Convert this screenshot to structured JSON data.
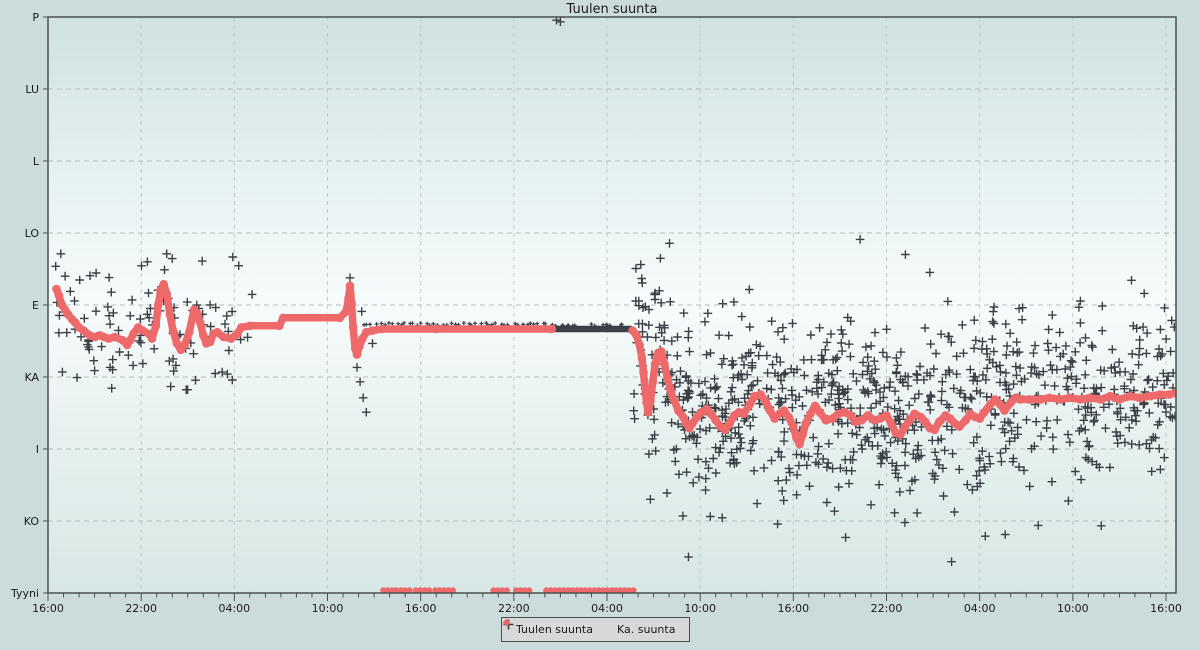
{
  "title": "Tuulen suunta",
  "legend": {
    "items": [
      {
        "label": "Tuulen suunta",
        "marker": "plus"
      },
      {
        "label": "Ka. suunta",
        "marker": "diamond"
      }
    ]
  },
  "colors": {
    "background": "#ccdcdc",
    "plot_top": "#cfe1e1",
    "plot_mid": "#f7fcfc",
    "plot_bottom": "#d7e7e5",
    "frame": "#4a4f52",
    "grid_h": "#b4bcbc",
    "grid_v": "#c2caca",
    "marker_plus": "#3a4045",
    "avg_line": "#ee6a6a",
    "legend_bg": "#d8d8d8",
    "text": "#1a1a1a"
  },
  "chart_data": {
    "type": "scatter",
    "title": "Tuulen suunta",
    "x_axis": {
      "tick_labels": [
        "16:00",
        "22:00",
        "04:00",
        "10:00",
        "16:00",
        "22:00",
        "04:00",
        "10:00",
        "16:00",
        "22:00",
        "04:00",
        "10:00",
        "16:00"
      ],
      "hours_per_major_tick": 6,
      "minor_tick_hours": 1,
      "hours_total": 72.6,
      "grid": true
    },
    "y_axis": {
      "tick_labels": [
        "P",
        "LU",
        "L",
        "LO",
        "E",
        "KA",
        "I",
        "KO",
        "Tyyni"
      ],
      "degrees": [
        360,
        315,
        270,
        225,
        180,
        135,
        90,
        45,
        0
      ],
      "grid": true
    },
    "legend_position": "bottom-center",
    "series": [
      {
        "name": "Ka. suunta",
        "type": "line",
        "points_h_deg": [
          [
            0.55,
            190
          ],
          [
            0.7,
            186
          ],
          [
            0.9,
            180
          ],
          [
            1.1,
            177
          ],
          [
            1.3,
            174
          ],
          [
            1.55,
            171
          ],
          [
            1.75,
            169
          ],
          [
            2.0,
            166
          ],
          [
            2.3,
            164
          ],
          [
            2.7,
            161
          ],
          [
            3.0,
            160
          ],
          [
            3.35,
            161
          ],
          [
            3.6,
            160
          ],
          [
            3.9,
            159
          ],
          [
            4.3,
            160
          ],
          [
            4.8,
            158
          ],
          [
            5.1,
            155
          ],
          [
            5.3,
            158
          ],
          [
            5.5,
            162
          ],
          [
            5.8,
            166
          ],
          [
            6.1,
            164
          ],
          [
            6.5,
            162
          ],
          [
            6.7,
            159
          ],
          [
            6.95,
            167
          ],
          [
            7.1,
            180
          ],
          [
            7.25,
            189
          ],
          [
            7.45,
            193
          ],
          [
            7.65,
            187
          ],
          [
            7.85,
            174
          ],
          [
            8.05,
            164
          ],
          [
            8.3,
            156
          ],
          [
            8.55,
            152
          ],
          [
            8.8,
            155
          ],
          [
            9.1,
            163
          ],
          [
            9.4,
            177
          ],
          [
            9.6,
            175
          ],
          [
            9.8,
            169
          ],
          [
            10.0,
            161
          ],
          [
            10.2,
            156
          ],
          [
            10.45,
            157
          ],
          [
            10.65,
            162
          ],
          [
            10.9,
            163
          ],
          [
            11.3,
            160
          ],
          [
            11.8,
            159
          ],
          [
            12.2,
            162
          ],
          [
            12.45,
            166
          ],
          [
            13.0,
            167
          ],
          [
            14.9,
            167
          ],
          [
            15.15,
            172
          ],
          [
            18.8,
            172
          ],
          [
            19.2,
            176
          ],
          [
            19.35,
            184
          ],
          [
            19.45,
            192
          ],
          [
            19.55,
            181
          ],
          [
            19.65,
            166
          ],
          [
            19.78,
            153
          ],
          [
            19.9,
            149
          ],
          [
            20.05,
            154
          ],
          [
            20.25,
            159
          ],
          [
            20.5,
            163
          ],
          [
            20.9,
            164
          ],
          [
            21.5,
            165
          ],
          [
            25.0,
            165
          ],
          [
            32.45,
            165
          ]
        ],
        "points2_h_deg": [
          [
            37.65,
            164
          ],
          [
            37.9,
            161
          ],
          [
            38.1,
            155
          ],
          [
            38.25,
            147
          ],
          [
            38.35,
            138
          ],
          [
            38.45,
            128
          ],
          [
            38.55,
            119
          ],
          [
            38.65,
            113
          ],
          [
            38.8,
            120
          ],
          [
            38.95,
            132
          ],
          [
            39.1,
            143
          ],
          [
            39.3,
            150
          ],
          [
            39.5,
            151
          ],
          [
            39.7,
            143
          ],
          [
            39.9,
            134
          ],
          [
            40.1,
            126
          ],
          [
            40.35,
            120
          ],
          [
            40.6,
            114
          ],
          [
            40.9,
            110
          ],
          [
            41.1,
            106
          ],
          [
            41.3,
            103
          ],
          [
            41.5,
            106
          ],
          [
            41.8,
            110
          ],
          [
            42.1,
            113
          ],
          [
            42.4,
            115
          ],
          [
            42.7,
            112
          ],
          [
            43.0,
            108
          ],
          [
            43.3,
            104
          ],
          [
            43.6,
            102
          ],
          [
            43.9,
            106
          ],
          [
            44.2,
            111
          ],
          [
            44.5,
            113
          ],
          [
            44.8,
            112
          ],
          [
            45.2,
            118
          ],
          [
            45.5,
            123
          ],
          [
            45.9,
            124
          ],
          [
            46.2,
            120
          ],
          [
            46.5,
            114
          ],
          [
            46.8,
            109
          ],
          [
            47.1,
            112
          ],
          [
            47.4,
            114
          ],
          [
            47.7,
            110
          ],
          [
            48.0,
            104
          ],
          [
            48.2,
            97
          ],
          [
            48.4,
            93
          ],
          [
            48.6,
            99
          ],
          [
            48.8,
            106
          ],
          [
            49.1,
            112
          ],
          [
            49.4,
            117
          ],
          [
            49.7,
            113
          ],
          [
            50.1,
            108
          ],
          [
            50.5,
            109
          ],
          [
            50.9,
            112
          ],
          [
            51.3,
            113
          ],
          [
            51.7,
            111
          ],
          [
            52.0,
            107
          ],
          [
            52.4,
            108
          ],
          [
            52.8,
            111
          ],
          [
            53.2,
            108
          ],
          [
            53.6,
            109
          ],
          [
            54.0,
            111
          ],
          [
            54.3,
            106
          ],
          [
            54.6,
            100
          ],
          [
            54.9,
            99
          ],
          [
            55.2,
            104
          ],
          [
            55.5,
            108
          ],
          [
            55.8,
            112
          ],
          [
            56.2,
            110
          ],
          [
            56.5,
            107
          ],
          [
            56.8,
            103
          ],
          [
            57.1,
            102
          ],
          [
            57.4,
            107
          ],
          [
            57.8,
            111
          ],
          [
            58.1,
            109
          ],
          [
            58.4,
            106
          ],
          [
            58.7,
            104
          ],
          [
            59.1,
            108
          ],
          [
            59.4,
            112
          ],
          [
            59.7,
            110
          ],
          [
            60.0,
            109
          ],
          [
            60.3,
            113
          ],
          [
            60.7,
            118
          ],
          [
            61.0,
            121
          ],
          [
            61.3,
            118
          ],
          [
            61.6,
            114
          ],
          [
            62.0,
            119
          ],
          [
            62.3,
            122
          ],
          [
            62.6,
            121
          ],
          [
            63.2,
            121
          ],
          [
            63.9,
            121
          ],
          [
            64.5,
            122
          ],
          [
            65.2,
            121
          ],
          [
            65.8,
            122
          ],
          [
            66.5,
            121
          ],
          [
            67.1,
            122
          ],
          [
            67.8,
            121
          ],
          [
            68.4,
            123
          ],
          [
            69.0,
            121
          ],
          [
            69.7,
            123
          ],
          [
            70.3,
            122
          ],
          [
            71.0,
            123
          ],
          [
            71.6,
            124
          ],
          [
            72.2,
            124
          ],
          [
            72.6,
            125
          ]
        ],
        "calm_segments_hours": [
          [
            21.6,
            23.3
          ],
          [
            23.7,
            24.72
          ],
          [
            24.95,
            26.1
          ],
          [
            28.7,
            29.8
          ],
          [
            30.15,
            31.0
          ],
          [
            32.1,
            37.8
          ]
        ],
        "calm_deg": 0
      },
      {
        "name": "Tuulen suunta",
        "type": "scatter-plus",
        "scatter_regions": [
          {
            "name": "start-period",
            "h_start": 0.45,
            "h_end": 13.2,
            "count": 95,
            "sigma_deg": 19,
            "center_offset_deg": 2,
            "deg_min": 122,
            "deg_max": 212,
            "seed": 42
          },
          {
            "name": "end-period",
            "h_start": 37.7,
            "h_end": 72.6,
            "count": 900,
            "sigma_deg": 29,
            "center_offset_deg": 5,
            "deg_min": 12,
            "deg_max": 240,
            "seed": 1337
          }
        ],
        "dense_row": {
          "h_start": 20.3,
          "h_end": 32.4,
          "count": 46,
          "deg": 168,
          "seed": 5
        },
        "dense_band": {
          "h_start": 32.45,
          "h_end": 37.6,
          "deg": 165,
          "top_ticks": 16,
          "seed": 9
        },
        "outlier_points_h_deg": [
          [
            3.1,
            200
          ],
          [
            6.4,
            207
          ],
          [
            7.5,
            202
          ],
          [
            8.0,
            209
          ],
          [
            11.9,
            210
          ],
          [
            3.0,
            139
          ],
          [
            4.0,
            141
          ],
          [
            4.1,
            128
          ],
          [
            7.9,
            129
          ],
          [
            8.9,
            127
          ],
          [
            9.5,
            133
          ],
          [
            19.45,
            197
          ],
          [
            20.2,
            176
          ],
          [
            20.9,
            156
          ],
          [
            19.9,
            141
          ],
          [
            20.1,
            132
          ],
          [
            20.3,
            122
          ],
          [
            20.5,
            113
          ],
          [
            32.75,
            358
          ],
          [
            33.0,
            357
          ],
          [
            38.6,
            160
          ],
          [
            52.3,
            221
          ]
        ]
      }
    ]
  }
}
